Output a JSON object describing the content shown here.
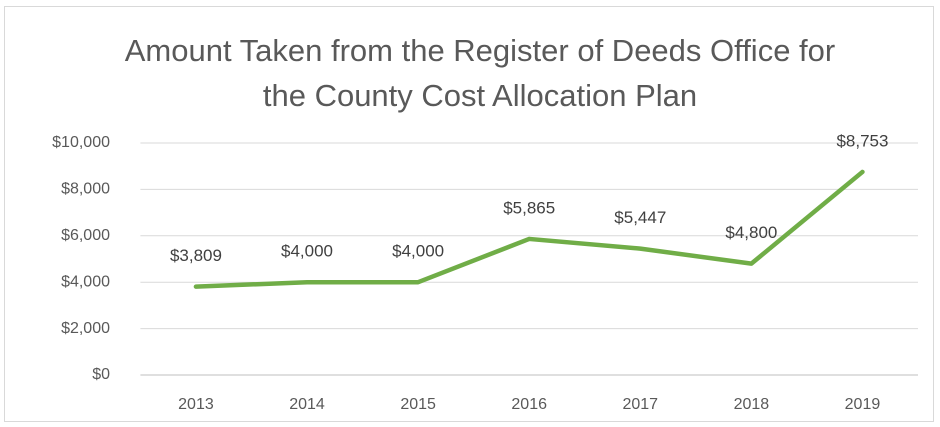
{
  "chart_data": {
    "type": "line",
    "title": "Amount Taken from the Register of Deeds Office for the County Cost Allocation Plan",
    "categories": [
      "2013",
      "2014",
      "2015",
      "2016",
      "2017",
      "2018",
      "2019"
    ],
    "values": [
      3809,
      4000,
      4000,
      5865,
      5447,
      4800,
      8753
    ],
    "value_labels": [
      "$3,809",
      "$4,000",
      "$4,000",
      "$5,865",
      "$5,447",
      "$4,800",
      "$8,753"
    ],
    "color": "#70ad47",
    "ylim": [
      0,
      10000
    ],
    "yticks": [
      {
        "value": 0,
        "label": "$0"
      },
      {
        "value": 2000,
        "label": "$2,000"
      },
      {
        "value": 4000,
        "label": "$4,000"
      },
      {
        "value": 6000,
        "label": "$6,000"
      },
      {
        "value": 8000,
        "label": "$8,000"
      },
      {
        "value": 10000,
        "label": "$10,000"
      }
    ],
    "grid": true
  }
}
